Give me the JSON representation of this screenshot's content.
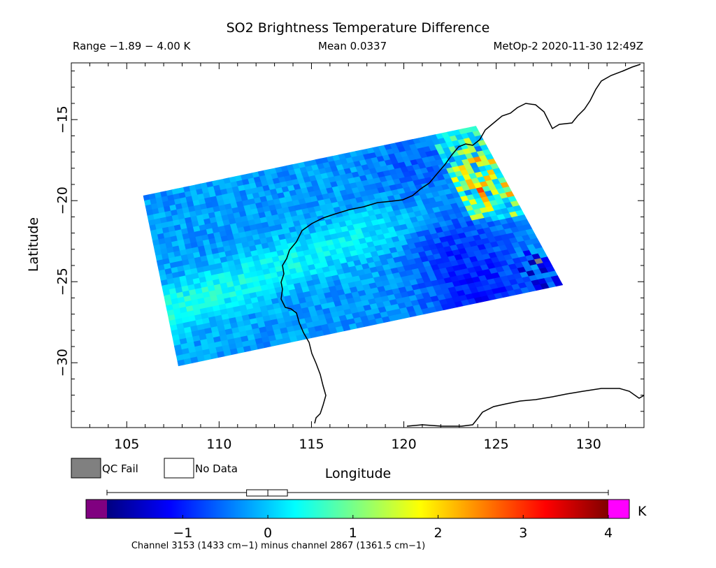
{
  "chart_data": {
    "type": "heatmap",
    "title": "SO2 Brightness Temperature Difference",
    "range_text": "Range −1.89 − 4.00 K",
    "mean_text": "Mean 0.0337",
    "satellite_text": "MetOp-2 2020-11-30 12:49Z",
    "xlabel": "Longitude",
    "ylabel": "Latitude",
    "xlim": [
      102,
      133
    ],
    "ylim": [
      -34,
      -11.5
    ],
    "xticks": [
      105,
      110,
      115,
      120,
      125,
      130
    ],
    "yticks": [
      -15,
      -20,
      -25,
      -30
    ],
    "swath_corners_lonlat": [
      [
        105.9,
        -19.7
      ],
      [
        123.9,
        -15.4
      ],
      [
        128.6,
        -25.2
      ],
      [
        107.8,
        -30.2
      ]
    ],
    "hotspot_lonlat": [
      124.9,
      -18.9
    ],
    "colorbar": {
      "min": -1.89,
      "max": 4.0,
      "ticks": [
        -1,
        0,
        1,
        2,
        3,
        4
      ],
      "unit": "K",
      "colors": [
        "#000080",
        "#0000ff",
        "#0080ff",
        "#00ffff",
        "#80ff80",
        "#ffff00",
        "#ff8000",
        "#ff0000",
        "#800000"
      ],
      "under_color": "#800080",
      "over_color": "#ff00ff",
      "boxplot": {
        "min": -1.89,
        "q1": -0.25,
        "median": 0.0,
        "q3": 0.23,
        "max": 4.0
      }
    },
    "legend": [
      {
        "label": "QC Fail",
        "color": "#808080"
      },
      {
        "label": "No Data",
        "color": "#ffffff"
      }
    ],
    "caption": "Channel 3153 (1433 cm−1) minus channel 2867 (1361.5 cm−1)"
  }
}
